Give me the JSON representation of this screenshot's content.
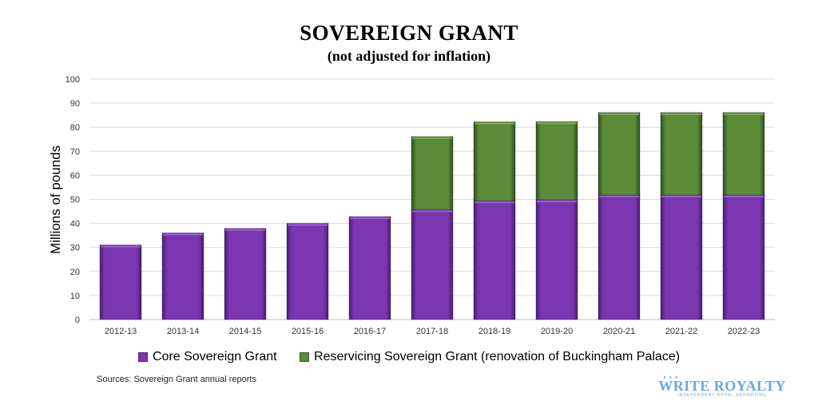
{
  "chart_data": {
    "type": "bar",
    "stacked": true,
    "title": "SOVEREIGN GRANT",
    "subtitle": "(not adjusted for inflation)",
    "xlabel": "",
    "ylabel": "Millions of pounds",
    "ylim": [
      0,
      100
    ],
    "yticks": [
      0,
      10,
      20,
      30,
      40,
      50,
      60,
      70,
      80,
      90,
      100
    ],
    "grid": true,
    "legend_position": "bottom",
    "categories": [
      "2012-13",
      "2013-14",
      "2014-15",
      "2015-16",
      "2016-17",
      "2017-18",
      "2018-19",
      "2019-20",
      "2020-21",
      "2021-22",
      "2022-23"
    ],
    "series": [
      {
        "name": "Core Sovereign Grant",
        "color": "#7a36b0",
        "values": [
          31,
          36,
          37.9,
          40,
          42.8,
          45.7,
          49.4,
          49.8,
          51.8,
          51.8,
          51.8
        ]
      },
      {
        "name": "Reservicing Sovereign Grant (renovation of Buckingham Palace)",
        "color": "#5a8c3a",
        "values": [
          0,
          0,
          0,
          0,
          0,
          30.4,
          32.8,
          32.5,
          34.3,
          34.3,
          34.3
        ]
      }
    ]
  },
  "source": "Sources: Sovereign Grant annual reports",
  "logo": {
    "main": "WRITE ROYALTY",
    "tagline": "INDEPENDENT ROYAL REPORTING"
  }
}
